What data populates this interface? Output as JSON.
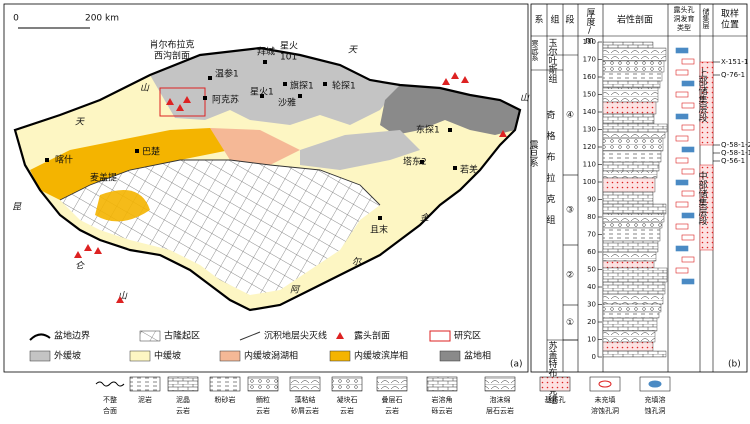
{
  "map": {
    "scale": [
      "0",
      "200 km"
    ],
    "profile_label": [
      "肖尔布拉克",
      "西沟剖面"
    ],
    "places": [
      [
        "拜城"
      ],
      [
        "星火",
        "101"
      ],
      [
        "温参1"
      ],
      [
        "阿克苏"
      ],
      [
        "星火1"
      ],
      [
        "旗探1"
      ],
      [
        "沙雅"
      ],
      [
        "轮探1"
      ],
      [
        "东探1"
      ],
      [
        "塔东2"
      ],
      [
        "若羌"
      ],
      [
        "且末"
      ],
      [
        "巴楚"
      ],
      [
        "喀什"
      ],
      [
        "麦盖提"
      ]
    ],
    "mountains": [
      "天",
      "山",
      "山",
      "天",
      "昆",
      "仑",
      "山",
      "金",
      "尔",
      "阿"
    ],
    "legend": [
      "盆地边界",
      "古隆起区",
      "沉积地层尖灭线",
      "露头剖面",
      "研究区",
      "外缓坡",
      "中缓坡",
      "内缓坡潟湖相",
      "内缓坡滨岸相",
      "盆地相"
    ],
    "panel_label": "(a)"
  },
  "column": {
    "headers": {
      "system": "系",
      "formation": "组",
      "member": "段",
      "thickness": "厚度/m",
      "lithology": "岩性剖面",
      "pore_type": [
        "露头孔",
        "洞发育",
        "类型"
      ],
      "reservoir": "储集层",
      "sampling": [
        "取样",
        "位置"
      ]
    },
    "systems": [
      "寒武系",
      "震旦系"
    ],
    "formations": [
      "玉尔吐斯组",
      "奇格布拉克组",
      "苏盖特布拉克组"
    ],
    "members": [
      "④",
      "③",
      "②",
      "①"
    ],
    "thickness_ticks": [
      0,
      10,
      20,
      30,
      40,
      50,
      60,
      70,
      80,
      90,
      100,
      110,
      120,
      130,
      140,
      150,
      160,
      170,
      180
    ],
    "reservoirs": [
      "上部储集层段",
      "中部储集层段"
    ],
    "samples": [
      "X-151-1",
      "Q-76-1",
      "Q-58-1-2",
      "Q-58-1-1",
      "Q-56-1"
    ],
    "panel_label": "(b)"
  },
  "legend": [
    [
      "不整",
      "合面"
    ],
    [
      "泥岩"
    ],
    [
      "泥晶",
      "云岩"
    ],
    [
      "粉砂岩"
    ],
    [
      "鲕粒",
      "云岩"
    ],
    [
      "藻粘结",
      "砂屑云岩"
    ],
    [
      "凝块石",
      "云岩"
    ],
    [
      "叠层石",
      "云岩"
    ],
    [
      "岩溶角",
      "砾云岩"
    ],
    [
      "泡沫绵",
      "层石云岩"
    ],
    [
      "基质孔"
    ],
    [
      "未充填",
      "溶蚀孔洞"
    ],
    [
      "充填溶",
      "蚀孔洞"
    ]
  ]
}
